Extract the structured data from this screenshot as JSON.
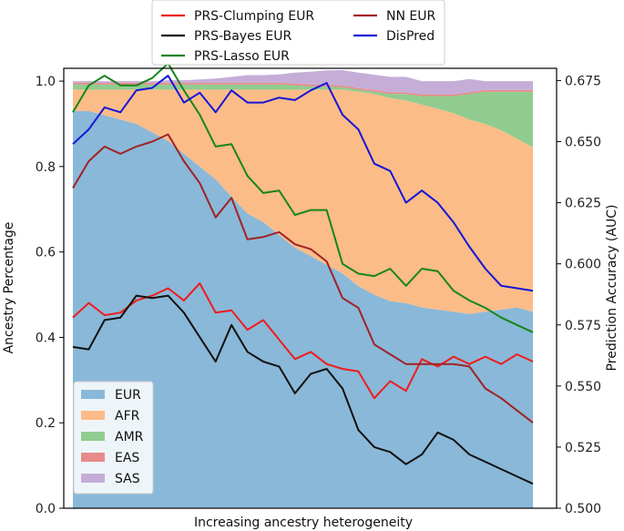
{
  "chart_data": {
    "type": "area",
    "xlabel": "Increasing ancestry heterogeneity",
    "ylabel_left": "Ancestry Percentage",
    "ylabel_right": "Prediction Accuracy (AUC)",
    "ylim_left": [
      0,
      1.03
    ],
    "ylim_right": [
      0.5,
      0.68
    ],
    "yticks_left": [
      "0.0",
      "0.2",
      "0.4",
      "0.6",
      "0.8",
      "1.0"
    ],
    "yticks_right": [
      "0.500",
      "0.525",
      "0.550",
      "0.575",
      "0.600",
      "0.625",
      "0.650",
      "0.675"
    ],
    "yticks_left_values": [
      0,
      0.2,
      0.4,
      0.6,
      0.8,
      1.0
    ],
    "yticks_right_values": [
      0.5,
      0.525,
      0.55,
      0.575,
      0.6,
      0.625,
      0.65,
      0.675
    ],
    "n_points": 30,
    "ancestry_stack": [
      {
        "name": "EUR",
        "color": "#8ab8d8",
        "values": [
          0.93,
          0.93,
          0.92,
          0.91,
          0.9,
          0.88,
          0.86,
          0.83,
          0.8,
          0.77,
          0.73,
          0.69,
          0.67,
          0.64,
          0.61,
          0.59,
          0.57,
          0.55,
          0.52,
          0.5,
          0.485,
          0.48,
          0.47,
          0.465,
          0.46,
          0.455,
          0.46,
          0.465,
          0.47,
          0.46
        ]
      },
      {
        "name": "AFR",
        "color": "#fbbc88",
        "values": [
          0.05,
          0.05,
          0.06,
          0.07,
          0.08,
          0.1,
          0.12,
          0.15,
          0.18,
          0.21,
          0.25,
          0.29,
          0.31,
          0.34,
          0.37,
          0.39,
          0.41,
          0.43,
          0.455,
          0.47,
          0.475,
          0.475,
          0.475,
          0.47,
          0.465,
          0.455,
          0.44,
          0.42,
          0.395,
          0.385
        ]
      },
      {
        "name": "AMR",
        "color": "#90cc90",
        "values": [
          0.012,
          0.012,
          0.012,
          0.012,
          0.012,
          0.012,
          0.012,
          0.012,
          0.012,
          0.012,
          0.012,
          0.012,
          0.012,
          0.012,
          0.01,
          0.008,
          0.007,
          0.006,
          0.005,
          0.005,
          0.01,
          0.015,
          0.02,
          0.03,
          0.04,
          0.06,
          0.075,
          0.09,
          0.11,
          0.13
        ]
      },
      {
        "name": "EAS",
        "color": "#e88a8a",
        "values": [
          0.004,
          0.004,
          0.004,
          0.004,
          0.004,
          0.004,
          0.004,
          0.004,
          0.004,
          0.004,
          0.004,
          0.004,
          0.004,
          0.004,
          0.004,
          0.004,
          0.004,
          0.004,
          0.004,
          0.004,
          0.004,
          0.004,
          0.004,
          0.004,
          0.004,
          0.004,
          0.004,
          0.004,
          0.004,
          0.004
        ]
      },
      {
        "name": "SAS",
        "color": "#c5add8",
        "values": [
          0.004,
          0.004,
          0.004,
          0.004,
          0.004,
          0.004,
          0.006,
          0.006,
          0.008,
          0.01,
          0.014,
          0.018,
          0.018,
          0.02,
          0.026,
          0.03,
          0.034,
          0.036,
          0.036,
          0.036,
          0.036,
          0.036,
          0.031,
          0.031,
          0.031,
          0.031,
          0.021,
          0.021,
          0.021,
          0.021
        ]
      }
    ],
    "accuracy_series": [
      {
        "name": "PRS-Clumping EUR",
        "color": "#ee1c1c",
        "values": [
          0.578,
          0.584,
          0.579,
          0.58,
          0.585,
          0.587,
          0.59,
          0.585,
          0.592,
          0.58,
          0.581,
          0.573,
          0.577,
          0.569,
          0.561,
          0.564,
          0.559,
          0.557,
          0.556,
          0.545,
          0.552,
          0.548,
          0.561,
          0.558,
          0.562,
          0.559,
          0.562,
          0.559,
          0.563,
          0.56
        ]
      },
      {
        "name": "PRS-Bayes EUR",
        "color": "#111111",
        "values": [
          0.566,
          0.565,
          0.577,
          0.578,
          0.587,
          0.586,
          0.587,
          0.58,
          0.57,
          0.56,
          0.575,
          0.564,
          0.56,
          0.558,
          0.547,
          0.555,
          0.557,
          0.549,
          0.532,
          0.525,
          0.523,
          0.518,
          0.522,
          0.531,
          0.528,
          0.522,
          0.519,
          0.516,
          0.513,
          0.51
        ]
      },
      {
        "name": "PRS-Lasso EUR",
        "color": "#17851b",
        "values": [
          0.662,
          0.673,
          0.677,
          0.673,
          0.673,
          0.676,
          0.682,
          0.671,
          0.661,
          0.648,
          0.649,
          0.636,
          0.629,
          0.63,
          0.62,
          0.622,
          0.622,
          0.6,
          0.596,
          0.595,
          0.598,
          0.591,
          0.598,
          0.597,
          0.589,
          0.585,
          0.582,
          0.578,
          0.575,
          0.572
        ]
      },
      {
        "name": "NN EUR",
        "color": "#a02226",
        "values": [
          0.631,
          0.642,
          0.648,
          0.645,
          0.648,
          0.65,
          0.653,
          0.642,
          0.633,
          0.619,
          0.627,
          0.61,
          0.611,
          0.613,
          0.608,
          0.606,
          0.601,
          0.586,
          0.582,
          0.567,
          0.563,
          0.559,
          0.559,
          0.559,
          0.559,
          0.558,
          0.549,
          0.545,
          0.54,
          0.535
        ]
      },
      {
        "name": "DisPred",
        "color": "#1515d8",
        "values": [
          0.649,
          0.655,
          0.664,
          0.662,
          0.671,
          0.672,
          0.677,
          0.666,
          0.67,
          0.662,
          0.671,
          0.666,
          0.666,
          0.668,
          0.667,
          0.671,
          0.674,
          0.661,
          0.655,
          0.641,
          0.638,
          0.625,
          0.63,
          0.625,
          0.617,
          0.607,
          0.598,
          0.591,
          0.59,
          0.589
        ]
      }
    ],
    "legend_top": [
      "PRS-Clumping EUR",
      "PRS-Bayes EUR",
      "PRS-Lasso EUR",
      "NN EUR",
      "DisPred"
    ],
    "legend_bottom": [
      "EUR",
      "AFR",
      "AMR",
      "EAS",
      "SAS"
    ]
  }
}
